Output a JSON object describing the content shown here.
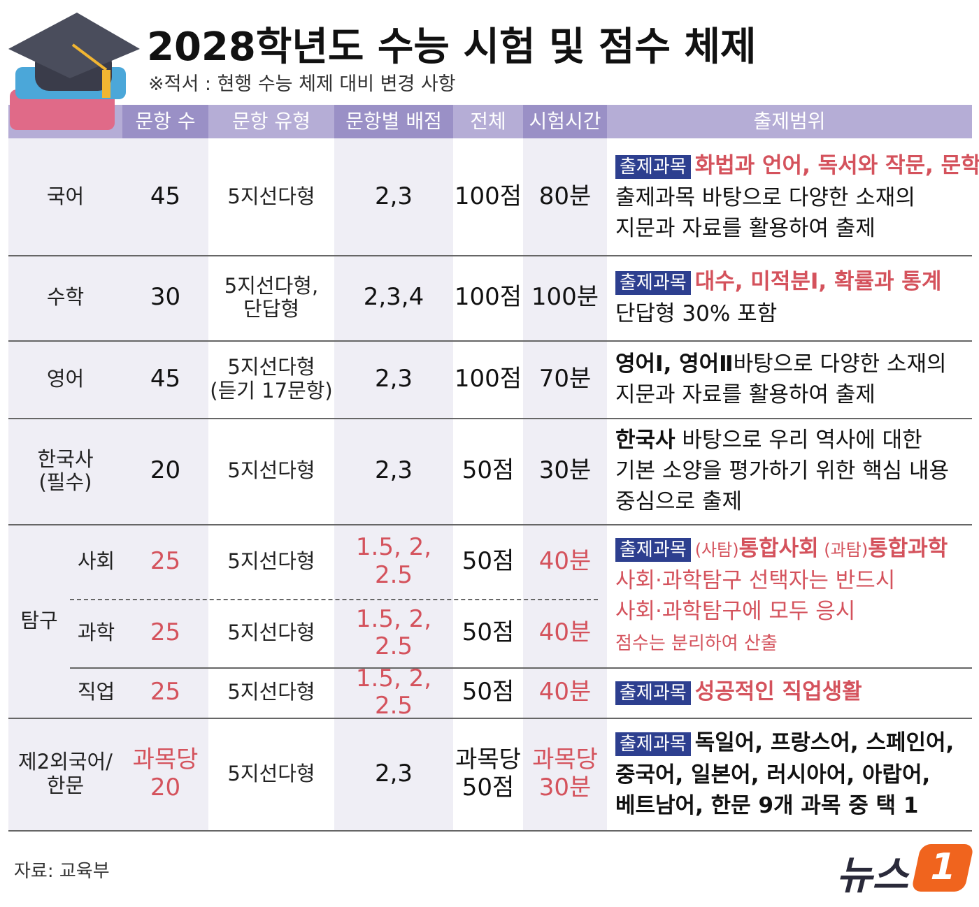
{
  "title": "2028학년도 수능 시험 및 점수 체제",
  "subtitle": "※적서 : 현행 수능 체제 대비 변경 사항",
  "table": {
    "headers": [
      "문항 수",
      "문항 유형",
      "문항별 배점",
      "전체",
      "시험시간",
      "출제범위"
    ],
    "sections": [
      {
        "label": "국어",
        "cells": [
          "45",
          "5지선다형",
          "2,3",
          "100점",
          "80분"
        ],
        "red": [],
        "scope": [
          [
            {
              "text": "출제과목",
              "style": "badge"
            },
            {
              "text": "화법과 언어, 독서와 작문, 문학",
              "style": "red"
            }
          ],
          [
            {
              "text": "출제과목 바탕으로 다양한 소재의",
              "style": "plain"
            }
          ],
          [
            {
              "text": "지문과 자료를 활용하여 출제",
              "style": "plain"
            }
          ]
        ]
      },
      {
        "label": "수학",
        "cells": [
          "30",
          "5지선다형,\n단답형",
          "2,3,4",
          "100점",
          "100분"
        ],
        "red": [],
        "scope": [
          [
            {
              "text": "출제과목",
              "style": "badge"
            },
            {
              "text": "대수, 미적분Ⅰ, 확률과 통계",
              "style": "red"
            }
          ],
          [
            {
              "text": "단답형 30% 포함",
              "style": "plain"
            }
          ]
        ]
      },
      {
        "label": "영어",
        "cells": [
          "45",
          "5지선다형\n(듣기 17문항)",
          "2,3",
          "100점",
          "70분"
        ],
        "red": [],
        "scope": [
          [
            {
              "text": "영어Ⅰ, 영어Ⅱ",
              "style": "bold"
            },
            {
              "text": "바탕으로 다양한 소재의",
              "style": "plain"
            }
          ],
          [
            {
              "text": "지문과 자료를 활용하여 출제",
              "style": "plain"
            }
          ]
        ]
      },
      {
        "label": "한국사\n(필수)",
        "cells": [
          "20",
          "5지선다형",
          "2,3",
          "50점",
          "30분"
        ],
        "red": [],
        "scope": [
          [
            {
              "text": "한국사",
              "style": "bold"
            },
            {
              "text": " 바탕으로 우리 역사에 대한",
              "style": "plain"
            }
          ],
          [
            {
              "text": "기본 소양을 평가하기 위한 핵심 내용",
              "style": "plain"
            }
          ],
          [
            {
              "text": "중심으로 출제",
              "style": "plain"
            }
          ]
        ]
      },
      {
        "label": "탐구",
        "subrows": [
          {
            "label": "사회",
            "cells": [
              "25",
              "5지선다형",
              "1.5, 2,\n2.5",
              "50점",
              "40분"
            ],
            "red": [
              0,
              2,
              4
            ],
            "scope": [
              [
                {
                  "text": "출제과목",
                  "style": "badge"
                },
                {
                  "text": "(사탐)",
                  "style": "red-small"
                },
                {
                  "text": "통합사회",
                  "style": "red"
                },
                {
                  "text": " (과탐)",
                  "style": "red-small"
                },
                {
                  "text": "통합과학",
                  "style": "red"
                }
              ],
              [
                {
                  "text": "사회·과학탐구 선택자는 반드시",
                  "style": "red-plain"
                }
              ],
              [
                {
                  "text": "사회·과학탐구에 모두 응시",
                  "style": "red-plain"
                }
              ],
              [
                {
                  "text": "점수는 분리하여 산출",
                  "style": "red-note"
                }
              ]
            ]
          },
          {
            "label": "과학",
            "cells": [
              "25",
              "5지선다형",
              "1.5, 2,\n2.5",
              "50점",
              "40분"
            ],
            "red": [
              0,
              2,
              4
            ]
          },
          {
            "label": "직업",
            "cells": [
              "25",
              "5지선다형",
              "1.5, 2, 2.5",
              "50점",
              "40분"
            ],
            "red": [
              0,
              2,
              4
            ],
            "scope": [
              [
                {
                  "text": "출제과목",
                  "style": "badge"
                },
                {
                  "text": "성공적인 직업생활",
                  "style": "red"
                }
              ]
            ]
          }
        ]
      },
      {
        "label": "제2외국어/\n한문",
        "cells": [
          "과목당\n20",
          "5지선다형",
          "2,3",
          "과목당\n50점",
          "과목당\n30분"
        ],
        "red": [
          0,
          4
        ],
        "scope": [
          [
            {
              "text": "출제과목",
              "style": "badge"
            },
            {
              "text": "독일어, 프랑스어, 스페인어,",
              "style": "bold"
            }
          ],
          [
            {
              "text": "중국어, 일본어, 러시아어, 아랍어,",
              "style": "bold"
            }
          ],
          [
            {
              "text": "베트남어, 한문 9개 과목 중 택 1",
              "style": "bold"
            }
          ]
        ]
      }
    ]
  },
  "source": "자료: 교육부",
  "logo": {
    "text": "뉴스",
    "number": "1"
  }
}
